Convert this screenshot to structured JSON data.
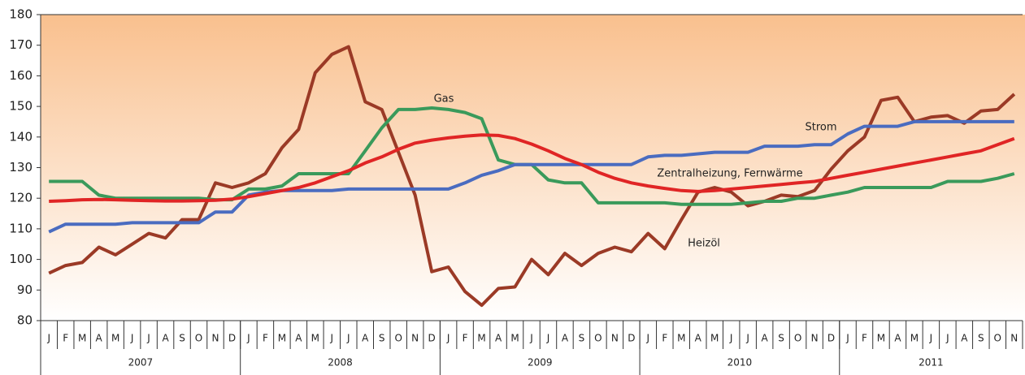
{
  "chart_data": {
    "type": "line",
    "categories": [
      "J",
      "F",
      "M",
      "A",
      "M",
      "J",
      "J",
      "A",
      "S",
      "O",
      "N",
      "D",
      "J",
      "F",
      "M",
      "A",
      "M",
      "J",
      "J",
      "A",
      "S",
      "O",
      "N",
      "D",
      "J",
      "F",
      "M",
      "A",
      "M",
      "J",
      "J",
      "A",
      "S",
      "O",
      "N",
      "D",
      "J",
      "F",
      "M",
      "A",
      "M",
      "J",
      "J",
      "A",
      "S",
      "O",
      "N",
      "D",
      "J",
      "F",
      "M",
      "A",
      "M",
      "J",
      "J",
      "A",
      "S",
      "O",
      "N"
    ],
    "x_groups": [
      {
        "label": "2007",
        "count": 12
      },
      {
        "label": "2008",
        "count": 12
      },
      {
        "label": "2009",
        "count": 12
      },
      {
        "label": "2010",
        "count": 12
      },
      {
        "label": "2011",
        "count": 11
      }
    ],
    "ylim": [
      80,
      180
    ],
    "yticks": [
      80,
      90,
      100,
      110,
      120,
      130,
      140,
      150,
      160,
      170,
      180
    ],
    "series": [
      {
        "name": "Heizöl",
        "color": "#9b3a26",
        "values": [
          95.5,
          98,
          99,
          104,
          101.5,
          105,
          108.5,
          107,
          113,
          113,
          125,
          123.5,
          125,
          128,
          136.5,
          142.5,
          161,
          167,
          169.5,
          151.5,
          149,
          135,
          121,
          96,
          97.5,
          89.5,
          85,
          90.5,
          91,
          100,
          95,
          102,
          98,
          102,
          104,
          102.5,
          108.5,
          103.5,
          113,
          122,
          123.5,
          122,
          117.5,
          119,
          121,
          120.5,
          122.5,
          129.5,
          135.5,
          140,
          152,
          153,
          145,
          146.5,
          147,
          144.5,
          148.5,
          149,
          154
        ]
      },
      {
        "name": "Gas",
        "color": "#3a9a5b",
        "values": [
          125.5,
          125.5,
          125.5,
          121,
          120,
          120,
          120,
          120,
          120,
          120,
          119.5,
          119.5,
          123,
          123,
          124,
          128,
          128,
          128,
          128,
          135.5,
          143,
          149,
          149,
          149.5,
          149,
          148,
          146,
          132.5,
          131,
          131,
          126,
          125,
          125,
          118.5,
          118.5,
          118.5,
          118.5,
          118.5,
          118,
          118,
          118,
          118,
          118.5,
          119,
          119,
          120,
          120,
          121,
          122,
          123.5,
          123.5,
          123.5,
          123.5,
          123.5,
          125.5,
          125.5,
          125.5,
          126.5,
          128
        ]
      },
      {
        "name": "Strom",
        "color": "#4a6cc0",
        "values": [
          109,
          111.5,
          111.5,
          111.5,
          111.5,
          112,
          112,
          112,
          112,
          112,
          115.5,
          115.5,
          121,
          122,
          122.5,
          122.5,
          122.5,
          122.5,
          123,
          123,
          123,
          123,
          123,
          123,
          123,
          125,
          127.5,
          129,
          131,
          131,
          131,
          131,
          131,
          131,
          131,
          131,
          133.5,
          134,
          134,
          134.5,
          135,
          135,
          135,
          137,
          137,
          137,
          137.5,
          137.5,
          141,
          143.5,
          143.5,
          143.5,
          145,
          145,
          145,
          145,
          145,
          145,
          145
        ]
      },
      {
        "name": "Zentralheizung, Fernwärme",
        "color": "#e02525",
        "values": [
          119,
          119.2,
          119.5,
          119.6,
          119.5,
          119.3,
          119.2,
          119.1,
          119.1,
          119.2,
          119.3,
          119.7,
          120.5,
          121.5,
          122.5,
          123.5,
          125,
          127,
          129,
          131.5,
          133.5,
          136,
          138,
          139,
          139.7,
          140.3,
          140.7,
          140.5,
          139.5,
          137.7,
          135.5,
          133,
          131,
          128.5,
          126.5,
          125,
          124,
          123.2,
          122.5,
          122.2,
          122.5,
          123,
          123.5,
          124,
          124.5,
          125,
          125.5,
          126.5,
          127.5,
          128.5,
          129.5,
          130.5,
          131.5,
          132.5,
          133.5,
          134.5,
          135.5,
          137.5,
          139.5
        ]
      }
    ]
  }
}
